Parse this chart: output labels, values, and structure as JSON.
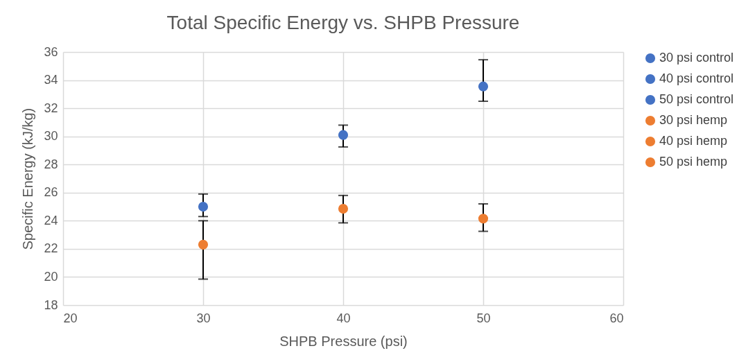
{
  "chart_data": {
    "type": "scatter",
    "title": "Total Specific Energy vs. SHPB Pressure",
    "xlabel": "SHPB Pressure (psi)",
    "ylabel": "Specific Energy (kJ/kg)",
    "xlim": [
      20,
      60
    ],
    "xticks": [
      20,
      30,
      40,
      50,
      60
    ],
    "ylim": [
      18,
      36
    ],
    "yticks": [
      18,
      20,
      22,
      24,
      26,
      28,
      30,
      32,
      34,
      36
    ],
    "grid": true,
    "legend": "right",
    "marker": "circle",
    "series": [
      {
        "name": "30 psi control",
        "color": "#4472c4",
        "x": [
          30
        ],
        "values": [
          25.0
        ],
        "errors": [
          [
            24.3,
            25.9
          ]
        ]
      },
      {
        "name": "40 psi control",
        "color": "#4472c4",
        "x": [
          40
        ],
        "values": [
          30.1
        ],
        "errors": [
          [
            29.25,
            30.8
          ]
        ]
      },
      {
        "name": "50 psi control",
        "color": "#4472c4",
        "x": [
          50
        ],
        "values": [
          33.55
        ],
        "errors": [
          [
            32.5,
            35.45
          ]
        ]
      },
      {
        "name": "30 psi hemp",
        "color": "#ed7d31",
        "x": [
          30
        ],
        "values": [
          22.3
        ],
        "errors": [
          [
            19.85,
            24.0
          ]
        ]
      },
      {
        "name": "40 psi hemp",
        "color": "#ed7d31",
        "x": [
          40
        ],
        "values": [
          24.85
        ],
        "errors": [
          [
            23.85,
            25.8
          ]
        ]
      },
      {
        "name": "50 psi hemp",
        "color": "#ed7d31",
        "x": [
          50
        ],
        "values": [
          24.15
        ],
        "errors": [
          [
            23.25,
            25.2
          ]
        ]
      }
    ]
  }
}
